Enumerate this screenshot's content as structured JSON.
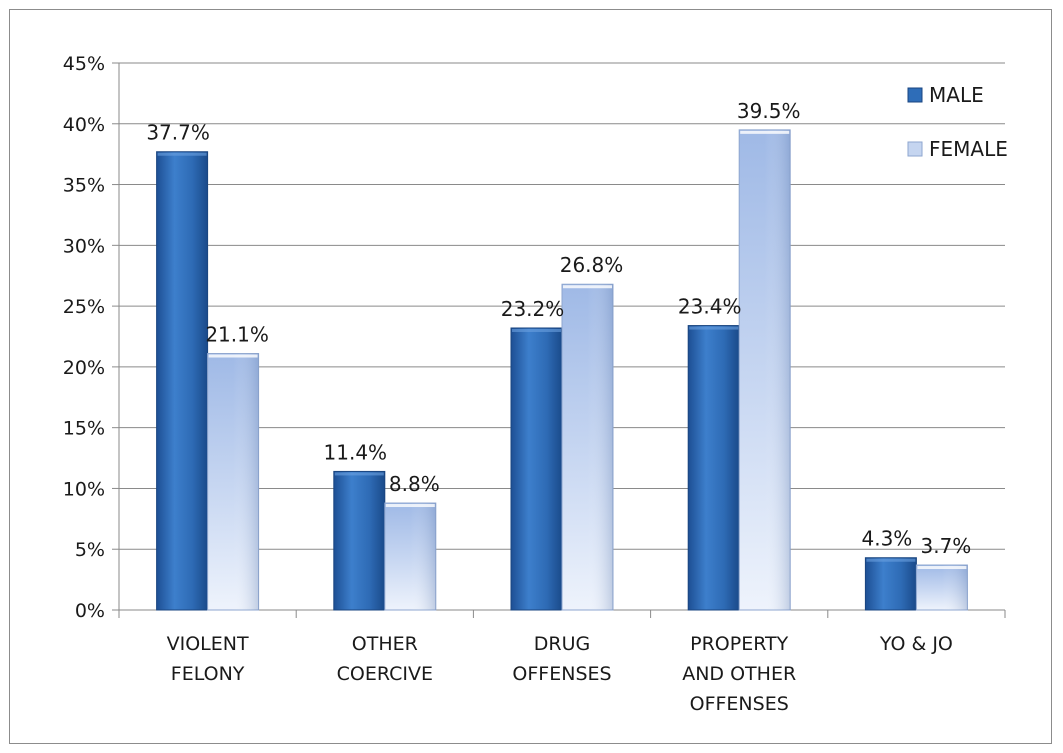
{
  "chart_data": {
    "type": "bar",
    "title": "",
    "xlabel": "",
    "ylabel": "",
    "categories": [
      [
        "VIOLENT",
        "FELONY"
      ],
      [
        "OTHER",
        "COERCIVE"
      ],
      [
        "DRUG",
        "OFFENSES"
      ],
      [
        "PROPERTY",
        "AND OTHER",
        "OFFENSES"
      ],
      [
        "YO & JO"
      ]
    ],
    "series": [
      {
        "name": "MALE",
        "values": [
          37.7,
          11.4,
          23.2,
          23.4,
          4.3
        ],
        "labels": [
          "37.7%",
          "11.4%",
          "23.2%",
          "23.4%",
          "4.3%"
        ],
        "color": "#2e6db8"
      },
      {
        "name": "FEMALE",
        "values": [
          21.1,
          8.8,
          26.8,
          39.5,
          3.7
        ],
        "labels": [
          "21.1%",
          "8.8%",
          "26.8%",
          "39.5%",
          "3.7%"
        ],
        "color": "#b7cbec"
      }
    ],
    "ylim": [
      0,
      45
    ],
    "yticks": [
      0,
      5,
      10,
      15,
      20,
      25,
      30,
      35,
      40,
      45
    ],
    "ytick_labels": [
      "0%",
      "5%",
      "10%",
      "15%",
      "20%",
      "25%",
      "30%",
      "35%",
      "40%",
      "45%"
    ],
    "grid": true,
    "legend_position": "top-right"
  }
}
